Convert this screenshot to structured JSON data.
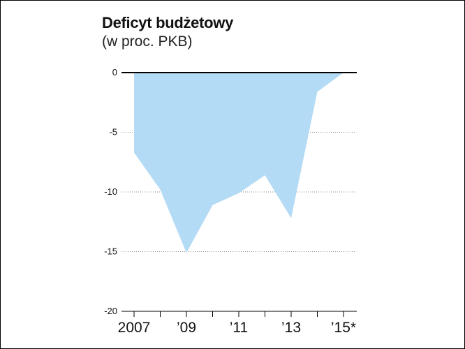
{
  "title": "Deficyt budżetowy",
  "subtitle": "(w proc. PKB)",
  "chart_data": {
    "type": "area",
    "x": [
      2007,
      2008,
      2009,
      2010,
      2011,
      2012,
      2013,
      2014,
      2015
    ],
    "series": [
      {
        "values": [
          -6.7,
          -9.8,
          -15.1,
          -11.1,
          -10.1,
          -8.6,
          -12.2,
          -1.6,
          0.0
        ]
      }
    ],
    "x_tick_values": [
      2007,
      2009,
      2011,
      2013,
      2015
    ],
    "x_tick_labels": [
      "2007",
      "’09",
      "’11",
      "’13",
      "’15*"
    ],
    "y_ticks": [
      0,
      -5,
      -10,
      -15,
      -20
    ],
    "y_tick_labels": [
      "0",
      "-5",
      "-10",
      "-15",
      "-20"
    ],
    "ylim": [
      -20,
      0
    ],
    "xlim": [
      2007,
      2015
    ],
    "grid": true,
    "colors": {
      "fill": "#b4dbf5",
      "zero_line": "#000000",
      "grid": "#888888"
    }
  }
}
